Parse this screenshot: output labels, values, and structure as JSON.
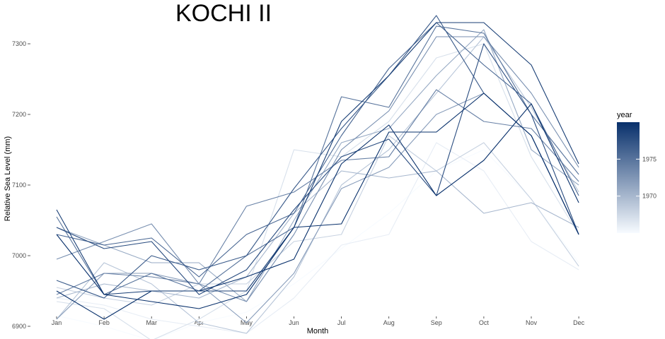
{
  "chart_data": {
    "type": "line",
    "title": "KOCHI II",
    "xlabel": "Month",
    "ylabel": "Relative Sea Level (mm)",
    "categories": [
      "Jan",
      "Feb",
      "Mar",
      "Apr",
      "May",
      "Jun",
      "Jul",
      "Aug",
      "Sep",
      "Oct",
      "Nov",
      "Dec"
    ],
    "yticks": [
      6900,
      7000,
      7100,
      7200,
      7300
    ],
    "ylim": [
      6868,
      7348
    ],
    "grid": false,
    "legend": {
      "title": "year",
      "placement": "right",
      "type": "colorbar",
      "labels": [
        "1970",
        "1975"
      ],
      "range": [
        1965,
        1980
      ],
      "colors": [
        "#f7fbff",
        "#08306b"
      ]
    },
    "series": [
      {
        "year": 1965,
        "values": [
          6915,
          6900,
          6880,
          6905,
          6920,
          6960,
          7010,
          7060,
          7120,
          7150,
          7080,
          6990
        ]
      },
      {
        "year": 1966,
        "values": [
          6940,
          6930,
          6910,
          6900,
          6890,
          6940,
          7015,
          7030,
          7160,
          7120,
          7020,
          6980
        ]
      },
      {
        "year": 1967,
        "values": [
          6935,
          6925,
          6880,
          6910,
          6950,
          7150,
          7140,
          7190,
          7280,
          7300,
          7140,
          7030
        ]
      },
      {
        "year": 1968,
        "values": [
          6955,
          6940,
          6930,
          6960,
          6960,
          7020,
          7030,
          7170,
          7120,
          7160,
          7080,
          6985
        ]
      },
      {
        "year": 1969,
        "values": [
          6910,
          6990,
          6960,
          6905,
          6890,
          6970,
          7100,
          7150,
          7230,
          7310,
          7210,
          7090
        ]
      },
      {
        "year": 1970,
        "values": [
          6940,
          6960,
          6950,
          6940,
          6970,
          7060,
          7120,
          7110,
          7120,
          7060,
          7075,
          7040
        ]
      },
      {
        "year": 1971,
        "values": [
          7040,
          7015,
          6990,
          6990,
          6935,
          7050,
          7160,
          7180,
          7255,
          7320,
          7150,
          7100
        ]
      },
      {
        "year": 1972,
        "values": [
          6910,
          6975,
          6975,
          6960,
          6905,
          6975,
          7095,
          7125,
          7200,
          7230,
          7170,
          7030
        ]
      },
      {
        "year": 1973,
        "values": [
          6995,
          7020,
          7045,
          6960,
          6935,
          7030,
          7150,
          7205,
          7310,
          7310,
          7230,
          7125
        ]
      },
      {
        "year": 1974,
        "values": [
          6945,
          6975,
          6970,
          6960,
          7070,
          7090,
          7135,
          7140,
          7235,
          7190,
          7180,
          7105
        ]
      },
      {
        "year": 1975,
        "values": [
          7055,
          6945,
          6975,
          6950,
          7000,
          7040,
          7225,
          7210,
          7325,
          7315,
          7200,
          7115
        ]
      },
      {
        "year": 1976,
        "values": [
          7030,
          7015,
          7025,
          6970,
          7030,
          7060,
          7170,
          7265,
          7330,
          7270,
          7215,
          7085
        ]
      },
      {
        "year": 1977,
        "values": [
          6965,
          6940,
          7000,
          6980,
          7000,
          7095,
          7180,
          7255,
          7340,
          7230,
          7170,
          7030
        ]
      },
      {
        "year": 1978,
        "values": [
          7040,
          7010,
          7020,
          6945,
          6980,
          7065,
          7140,
          7165,
          7085,
          7300,
          7200,
          7030
        ]
      },
      {
        "year": 1979,
        "values": [
          7065,
          6945,
          6950,
          6950,
          6950,
          7040,
          7190,
          7255,
          7330,
          7330,
          7270,
          7130
        ]
      },
      {
        "year": 1980,
        "values": [
          6950,
          6910,
          6950,
          6950,
          6970,
          6995,
          7130,
          7185,
          7085,
          7135,
          7215,
          7075
        ]
      },
      {
        "year": 1981,
        "values": [
          7030,
          6945,
          6935,
          6925,
          6945,
          7040,
          7045,
          7175,
          7175,
          7230,
          7170,
          7030
        ]
      }
    ]
  }
}
